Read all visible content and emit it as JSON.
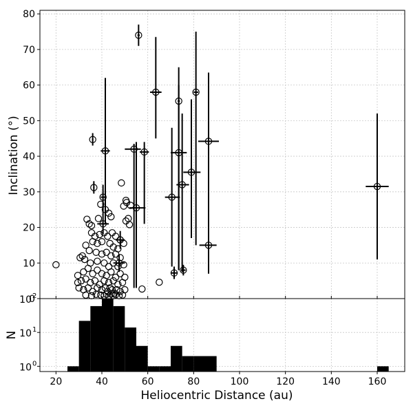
{
  "chart_data": [
    {
      "type": "scatter",
      "ylabel": "Inclination (°)",
      "xlim": [
        13,
        172
      ],
      "ylim": [
        0,
        81
      ],
      "x_ticks": [
        20,
        40,
        60,
        80,
        100,
        120,
        140,
        160
      ],
      "y_ticks": [
        0,
        10,
        20,
        30,
        40,
        50,
        60,
        70,
        80
      ],
      "grid": true,
      "marker": "open-circle",
      "color": "#000000",
      "errorbar_points": [
        {
          "x": 56,
          "y": 74,
          "ylo": 71,
          "yhi": 77,
          "xlo": 55.5,
          "xhi": 56.5
        },
        {
          "x": 63.5,
          "y": 58,
          "ylo": 45,
          "yhi": 73.5,
          "xlo": 61,
          "xhi": 66
        },
        {
          "x": 81,
          "y": 58,
          "ylo": 15,
          "yhi": 75,
          "xlo": 80,
          "xhi": 82
        },
        {
          "x": 73.5,
          "y": 55.5,
          "ylo": 8,
          "yhi": 65,
          "xlo": 73,
          "xhi": 74
        },
        {
          "x": 86.5,
          "y": 44.2,
          "ylo": 24,
          "yhi": 63.5,
          "xlo": 82,
          "xhi": 91
        },
        {
          "x": 41.5,
          "y": 41.5,
          "ylo": 21,
          "yhi": 62,
          "xlo": 39.5,
          "xhi": 43.5
        },
        {
          "x": 54,
          "y": 42,
          "ylo": 3,
          "yhi": 43.5,
          "xlo": 50,
          "xhi": 57
        },
        {
          "x": 58.5,
          "y": 41.2,
          "ylo": 21,
          "yhi": 44,
          "xlo": 56.5,
          "xhi": 60.5
        },
        {
          "x": 73.5,
          "y": 41,
          "ylo": 8,
          "yhi": 60,
          "xlo": 70,
          "xhi": 77
        },
        {
          "x": 79,
          "y": 35.5,
          "ylo": 17,
          "yhi": 56,
          "xlo": 75.5,
          "xhi": 83
        },
        {
          "x": 75,
          "y": 32,
          "ylo": 7.5,
          "yhi": 52,
          "xlo": 72.5,
          "xhi": 78
        },
        {
          "x": 160,
          "y": 31.5,
          "ylo": 11,
          "yhi": 52,
          "xlo": 155,
          "xhi": 165
        },
        {
          "x": 70.5,
          "y": 28.5,
          "ylo": 9,
          "yhi": 48,
          "xlo": 67.5,
          "xhi": 74
        },
        {
          "x": 55,
          "y": 25.5,
          "ylo": 3,
          "yhi": 44,
          "xlo": 52,
          "xhi": 59
        },
        {
          "x": 86.5,
          "y": 15,
          "ylo": 7,
          "yhi": 24,
          "xlo": 82.5,
          "xhi": 90
        },
        {
          "x": 40.5,
          "y": 28.5,
          "ylo": 24,
          "yhi": 32,
          "xlo": 39.5,
          "xhi": 41.5
        },
        {
          "x": 40.5,
          "y": 21,
          "ylo": 18,
          "yhi": 24,
          "xlo": 38,
          "xhi": 43
        },
        {
          "x": 71.5,
          "y": 7.2,
          "ylo": 5.5,
          "yhi": 9,
          "xlo": 70,
          "xhi": 73
        },
        {
          "x": 75.5,
          "y": 8,
          "ylo": 6.5,
          "yhi": 9.5,
          "xlo": 74.5,
          "xhi": 76.5
        },
        {
          "x": 36,
          "y": 44.7,
          "ylo": 43,
          "yhi": 46.5,
          "xlo": 35.7,
          "xhi": 36.3
        },
        {
          "x": 36.5,
          "y": 31.2,
          "ylo": 29.5,
          "yhi": 33,
          "xlo": 36.2,
          "xhi": 36.8
        },
        {
          "x": 48,
          "y": 16.5,
          "ylo": 14,
          "yhi": 19,
          "xlo": 46,
          "xhi": 50
        },
        {
          "x": 47.5,
          "y": 10,
          "ylo": 7.5,
          "yhi": 12.5,
          "xlo": 45,
          "xhi": 50
        }
      ],
      "points": [
        {
          "x": 20,
          "y": 9.5
        },
        {
          "x": 65,
          "y": 4.6
        },
        {
          "x": 57.5,
          "y": 2.7
        },
        {
          "x": 48.5,
          "y": 32.5
        },
        {
          "x": 39.5,
          "y": 26.5
        },
        {
          "x": 41.5,
          "y": 25
        },
        {
          "x": 43,
          "y": 24
        },
        {
          "x": 44,
          "y": 23
        },
        {
          "x": 33.5,
          "y": 22.3
        },
        {
          "x": 34.5,
          "y": 21
        },
        {
          "x": 35.5,
          "y": 20.5
        },
        {
          "x": 38.5,
          "y": 22.5
        },
        {
          "x": 50.5,
          "y": 27.6
        },
        {
          "x": 50.8,
          "y": 27
        },
        {
          "x": 52.5,
          "y": 26.2
        },
        {
          "x": 49.5,
          "y": 26
        },
        {
          "x": 51.5,
          "y": 22.5
        },
        {
          "x": 50.5,
          "y": 21.8
        },
        {
          "x": 52,
          "y": 20.8
        },
        {
          "x": 35.5,
          "y": 18.5
        },
        {
          "x": 37,
          "y": 17.5
        },
        {
          "x": 39,
          "y": 18
        },
        {
          "x": 41,
          "y": 18.5
        },
        {
          "x": 42.5,
          "y": 17.5
        },
        {
          "x": 44.5,
          "y": 18.5
        },
        {
          "x": 46,
          "y": 17.5
        },
        {
          "x": 48,
          "y": 16.5
        },
        {
          "x": 33,
          "y": 15
        },
        {
          "x": 36,
          "y": 16
        },
        {
          "x": 38,
          "y": 15.5
        },
        {
          "x": 40,
          "y": 16
        },
        {
          "x": 43.5,
          "y": 15.5
        },
        {
          "x": 45,
          "y": 14.5
        },
        {
          "x": 47,
          "y": 14
        },
        {
          "x": 49.5,
          "y": 15.5
        },
        {
          "x": 31.5,
          "y": 12
        },
        {
          "x": 34.5,
          "y": 13.5
        },
        {
          "x": 37.5,
          "y": 13
        },
        {
          "x": 40,
          "y": 12.5
        },
        {
          "x": 42,
          "y": 13
        },
        {
          "x": 44,
          "y": 12
        },
        {
          "x": 46,
          "y": 12.5
        },
        {
          "x": 48,
          "y": 11.5
        },
        {
          "x": 30.5,
          "y": 11.5
        },
        {
          "x": 32.5,
          "y": 11
        },
        {
          "x": 35,
          "y": 10
        },
        {
          "x": 38,
          "y": 10.5
        },
        {
          "x": 41,
          "y": 10
        },
        {
          "x": 43,
          "y": 9
        },
        {
          "x": 45,
          "y": 10
        },
        {
          "x": 47,
          "y": 9
        },
        {
          "x": 49.5,
          "y": 9.5
        },
        {
          "x": 29.5,
          "y": 6.5
        },
        {
          "x": 32,
          "y": 7.5
        },
        {
          "x": 34,
          "y": 8.5
        },
        {
          "x": 36,
          "y": 7
        },
        {
          "x": 38,
          "y": 8
        },
        {
          "x": 40,
          "y": 7
        },
        {
          "x": 42,
          "y": 6.5
        },
        {
          "x": 44,
          "y": 7.5
        },
        {
          "x": 46,
          "y": 6
        },
        {
          "x": 48,
          "y": 7
        },
        {
          "x": 50,
          "y": 6
        },
        {
          "x": 29.5,
          "y": 4.5
        },
        {
          "x": 31,
          "y": 5
        },
        {
          "x": 33,
          "y": 5.5
        },
        {
          "x": 35,
          "y": 4.5
        },
        {
          "x": 37,
          "y": 5
        },
        {
          "x": 39,
          "y": 4
        },
        {
          "x": 41,
          "y": 5
        },
        {
          "x": 43,
          "y": 4.5
        },
        {
          "x": 45,
          "y": 5
        },
        {
          "x": 47,
          "y": 4
        },
        {
          "x": 49,
          "y": 4.5
        },
        {
          "x": 30,
          "y": 3
        },
        {
          "x": 32,
          "y": 2.5
        },
        {
          "x": 34,
          "y": 3
        },
        {
          "x": 36,
          "y": 2
        },
        {
          "x": 38,
          "y": 3
        },
        {
          "x": 40,
          "y": 2.5
        },
        {
          "x": 41.5,
          "y": 3
        },
        {
          "x": 42.5,
          "y": 2
        },
        {
          "x": 43.5,
          "y": 3
        },
        {
          "x": 44.5,
          "y": 2.5
        },
        {
          "x": 45.5,
          "y": 1.5
        },
        {
          "x": 46.5,
          "y": 2.5
        },
        {
          "x": 48,
          "y": 2
        },
        {
          "x": 50,
          "y": 2.5
        },
        {
          "x": 33,
          "y": 1
        },
        {
          "x": 35.5,
          "y": 0.8
        },
        {
          "x": 37.5,
          "y": 1.2
        },
        {
          "x": 39.5,
          "y": 1
        },
        {
          "x": 41,
          "y": 0.8
        },
        {
          "x": 42,
          "y": 1.2
        },
        {
          "x": 43,
          "y": 0.7
        },
        {
          "x": 44,
          "y": 1.3
        },
        {
          "x": 45,
          "y": 0.8
        },
        {
          "x": 46,
          "y": 1.1
        },
        {
          "x": 47.5,
          "y": 0.8
        },
        {
          "x": 49,
          "y": 1
        }
      ]
    },
    {
      "type": "bar",
      "xlabel": "Heliocentric Distance (au)",
      "ylabel": "N",
      "ylog": true,
      "ylim": [
        0.7,
        100
      ],
      "y_ticks": [
        1,
        10,
        100
      ],
      "y_tick_labels": [
        {
          "base": "10",
          "exp": "0"
        },
        {
          "base": "10",
          "exp": "1"
        },
        {
          "base": "10",
          "exp": "2"
        }
      ],
      "x_ticks": [
        20,
        40,
        60,
        80,
        100,
        120,
        140,
        160
      ],
      "grid": true,
      "color": "#000000",
      "bins": [
        {
          "x0": 25,
          "x1": 30,
          "n": 1
        },
        {
          "x0": 30,
          "x1": 35,
          "n": 22
        },
        {
          "x0": 35,
          "x1": 40,
          "n": 60
        },
        {
          "x0": 40,
          "x1": 45,
          "n": 100
        },
        {
          "x0": 45,
          "x1": 50,
          "n": 60
        },
        {
          "x0": 50,
          "x1": 55,
          "n": 14
        },
        {
          "x0": 55,
          "x1": 60,
          "n": 4
        },
        {
          "x0": 60,
          "x1": 65,
          "n": 1
        },
        {
          "x0": 65,
          "x1": 70,
          "n": 1
        },
        {
          "x0": 70,
          "x1": 75,
          "n": 4
        },
        {
          "x0": 75,
          "x1": 80,
          "n": 2
        },
        {
          "x0": 80,
          "x1": 85,
          "n": 2
        },
        {
          "x0": 85,
          "x1": 90,
          "n": 2
        },
        {
          "x0": 160,
          "x1": 165,
          "n": 1
        }
      ]
    }
  ]
}
